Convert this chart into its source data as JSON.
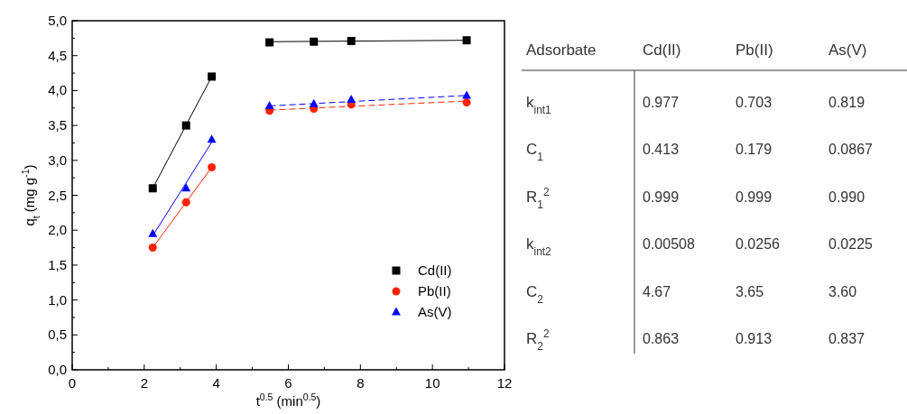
{
  "chart_data": [
    {
      "type": "scatter",
      "xlabel": "t$^{0.5}$ (min$^{0.5}$)",
      "ylabel": "q$_{t}$ (mg g$^{-1}$)",
      "xlim": [
        0,
        12
      ],
      "ylim": [
        0,
        5
      ],
      "xticks": [
        0,
        {
          "value": 1,
          "label": null
        },
        2,
        {
          "value": 3,
          "label": null
        },
        4,
        {
          "value": 5,
          "label": null
        },
        6,
        {
          "value": 7,
          "label": null
        },
        8,
        {
          "value": 9,
          "label": null
        },
        10,
        {
          "value": 11,
          "label": null
        },
        12
      ],
      "yticks": [
        {
          "value": 0,
          "label": "0,0"
        },
        {
          "value": 0.25,
          "label": null
        },
        {
          "value": 0.5,
          "label": "0,5"
        },
        {
          "value": 0.75,
          "label": null
        },
        {
          "value": 1,
          "label": "1,0"
        },
        {
          "value": 1.25,
          "label": null
        },
        {
          "value": 1.5,
          "label": "1,5"
        },
        {
          "value": 1.75,
          "label": null
        },
        {
          "value": 2,
          "label": "2,0"
        },
        {
          "value": 2.25,
          "label": null
        },
        {
          "value": 2.5,
          "label": "2,5"
        },
        {
          "value": 2.75,
          "label": null
        },
        {
          "value": 3,
          "label": "3,0"
        },
        {
          "value": 3.25,
          "label": null
        },
        {
          "value": 3.5,
          "label": "3,5"
        },
        {
          "value": 3.75,
          "label": null
        },
        {
          "value": 4,
          "label": "4,0"
        },
        {
          "value": 4.25,
          "label": null
        },
        {
          "value": 4.5,
          "label": "4,5"
        },
        {
          "value": 4.75,
          "label": null
        },
        {
          "value": 5,
          "label": "5,0"
        }
      ],
      "legend": "bottom right",
      "x": [
        2.236,
        3.162,
        3.873,
        5.477,
        6.708,
        7.746,
        10.95
      ],
      "series": [
        {
          "name": "Cd(II)",
          "color": "#000000",
          "marker": "square",
          "values": [
            2.6,
            3.5,
            4.2,
            4.69,
            4.7,
            4.71,
            4.72
          ]
        },
        {
          "name": "Pb(II)",
          "color": "#ff2200",
          "marker": "circle",
          "values": [
            1.75,
            2.4,
            2.9,
            3.71,
            3.74,
            3.8,
            3.83
          ]
        },
        {
          "name": "As(V)",
          "color": "#0000ff",
          "marker": "triangle",
          "values": [
            1.95,
            2.6,
            3.3,
            3.78,
            3.81,
            3.87,
            3.93
          ]
        },
        {
          "type": "line",
          "color": "#000000",
          "line_style": "solid",
          "x": [
            2.236,
            3.873
          ],
          "values": [
            2.6,
            4.2
          ]
        },
        {
          "type": "line",
          "color": "#000000",
          "line_style": "solid",
          "x": [
            5.477,
            10.95
          ],
          "values": [
            4.7,
            4.72
          ]
        },
        {
          "type": "line",
          "color": "#ff2200",
          "line_style": "solid",
          "x": [
            2.236,
            3.873
          ],
          "values": [
            1.75,
            2.9
          ]
        },
        {
          "type": "line",
          "color": "#ff2200",
          "line_style": "dashed",
          "x": [
            5.477,
            10.95
          ],
          "values": [
            3.72,
            3.85
          ]
        },
        {
          "type": "line",
          "color": "#0000ff",
          "line_style": "solid",
          "x": [
            2.236,
            3.873
          ],
          "values": [
            1.92,
            3.26
          ]
        },
        {
          "type": "line",
          "color": "#0000ff",
          "line_style": "dashed",
          "x": [
            5.477,
            10.95
          ],
          "values": [
            3.78,
            3.93
          ]
        }
      ]
    },
    {
      "type": "other",
      "annotations": [
        "Adsorbate",
        "Cd(II)",
        "Pb(II)",
        "As(V)",
        "k$_{int1}$",
        "0.977",
        "0.703",
        "0.819",
        "C$_{1}$",
        "0.413",
        "0.179",
        "0.0867",
        "R$_{1}$$^{2}$",
        "0.999",
        "0.999",
        "0.990",
        "k$_{int2}$",
        "0.00508",
        "0.0256",
        "0.0225",
        "C$_{2}$",
        "4.67",
        "3.65",
        "3.60",
        "R$_{2}$$^{2}$",
        "0.863",
        "0.913",
        "0.837"
      ]
    }
  ]
}
